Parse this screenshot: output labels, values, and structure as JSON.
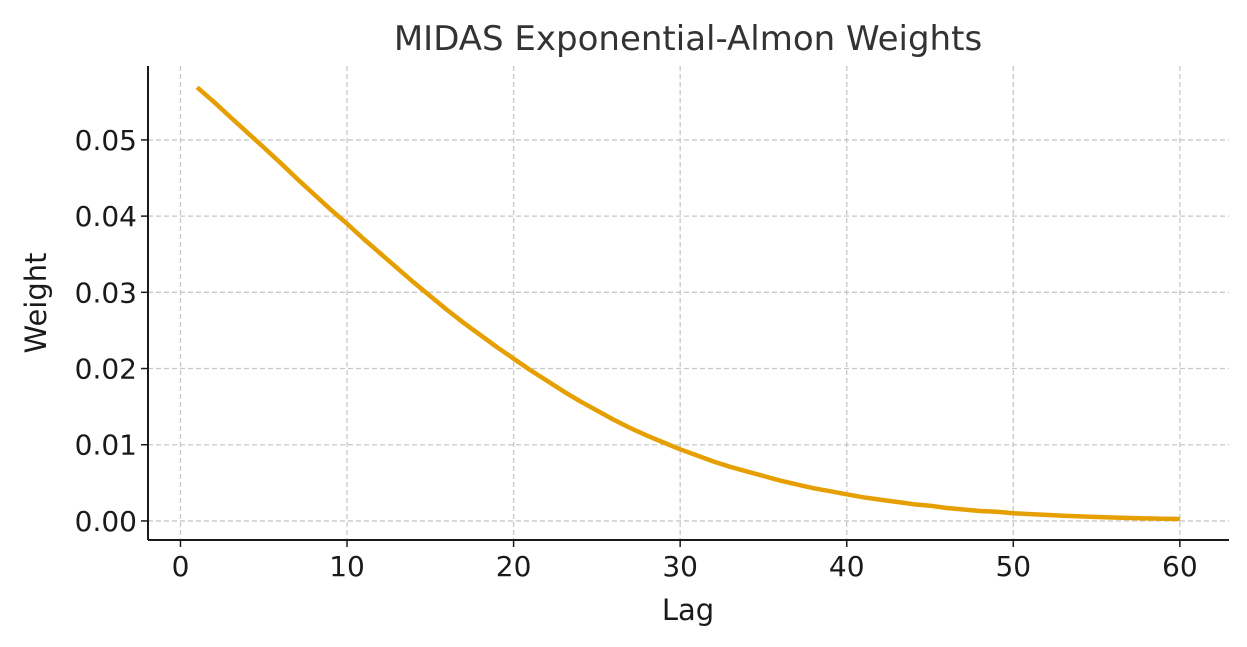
{
  "chart_data": {
    "type": "line",
    "title": "MIDAS Exponential-Almon Weights",
    "xlabel": "Lag",
    "ylabel": "Weight",
    "xlim": [
      -1.95,
      62.95
    ],
    "ylim": [
      -0.0025,
      0.0597
    ],
    "xticks": [
      0,
      10,
      20,
      30,
      40,
      50,
      60
    ],
    "xtick_labels": [
      "0",
      "10",
      "20",
      "30",
      "40",
      "50",
      "60"
    ],
    "yticks": [
      0,
      0.01,
      0.02,
      0.03,
      0.04,
      0.05
    ],
    "ytick_labels": [
      "0.00",
      "0.01",
      "0.02",
      "0.03",
      "0.04",
      "0.05"
    ],
    "grid": true,
    "grid_style": "dashed",
    "series": [
      {
        "color": "#E69F00",
        "x": [
          1,
          2,
          3,
          4,
          5,
          6,
          7,
          8,
          9,
          10,
          11,
          12,
          13,
          14,
          15,
          16,
          17,
          18,
          19,
          20,
          21,
          22,
          23,
          24,
          25,
          26,
          27,
          28,
          29,
          30,
          31,
          32,
          33,
          34,
          35,
          36,
          37,
          38,
          39,
          40,
          41,
          42,
          43,
          44,
          45,
          46,
          47,
          48,
          49,
          50,
          51,
          52,
          53,
          54,
          55,
          56,
          57,
          58,
          59,
          60
        ],
        "y": [
          0.0569,
          0.055,
          0.053,
          0.051,
          0.049,
          0.047,
          0.0449,
          0.0429,
          0.0409,
          0.039,
          0.037,
          0.0351,
          0.0332,
          0.0313,
          0.0295,
          0.0277,
          0.026,
          0.0244,
          0.0228,
          0.0213,
          0.0198,
          0.0184,
          0.017,
          0.0157,
          0.0145,
          0.0133,
          0.0122,
          0.0112,
          0.0103,
          0.0094,
          0.0086,
          0.0078,
          0.0071,
          0.0065,
          0.0059,
          0.0053,
          0.0048,
          0.0043,
          0.0039,
          0.0035,
          0.0031,
          0.0028,
          0.0025,
          0.0022,
          0.002,
          0.0017,
          0.0015,
          0.0013,
          0.0012,
          0.001,
          0.0009,
          0.00079,
          0.00069,
          0.0006,
          0.00052,
          0.00045,
          0.00039,
          0.00034,
          0.00029,
          0.00025
        ]
      }
    ]
  }
}
